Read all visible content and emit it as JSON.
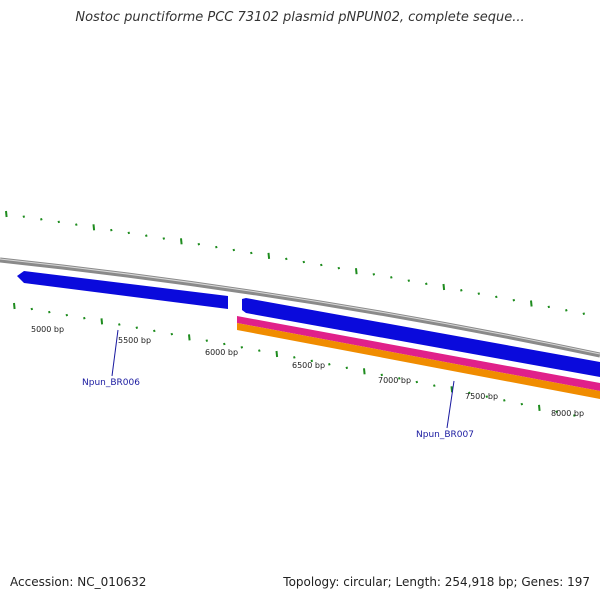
{
  "title": "Nostoc punctiforme PCC 73102 plasmid pNPUN02, complete seque...",
  "footer": {
    "accession": "Accession: NC_010632",
    "summary": "Topology: circular; Length: 254,918 bp; Genes: 197"
  },
  "colors": {
    "backbone": "#8a8a8a",
    "gene_forward": "#0a0adc",
    "rna_band": "#e0208a",
    "cds_band": "#f08c00",
    "tick": "#1e8c1e",
    "gene_label": "#1a1aa0"
  },
  "scale_ticks": [
    {
      "label": "5000 bp"
    },
    {
      "label": "5500 bp"
    },
    {
      "label": "6000 bp"
    },
    {
      "label": "6500 bp"
    },
    {
      "label": "7000 bp"
    },
    {
      "label": "7500 bp"
    },
    {
      "label": "8000 bp"
    }
  ],
  "genes": [
    {
      "label": "Npun_BR006"
    },
    {
      "label": "Npun_BR007"
    }
  ]
}
